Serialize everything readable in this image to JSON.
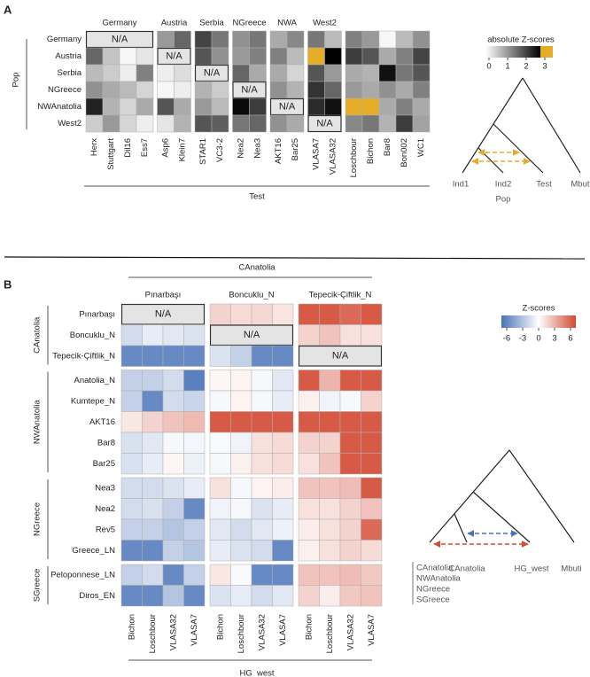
{
  "chart_data": [
    {
      "type": "heatmap",
      "panel": "A",
      "y_label": "Pop",
      "x_label": "Test",
      "na_label": "N/A",
      "rows": [
        "Germany",
        "Austria",
        "Serbia",
        "NGreece",
        "NWAnatolia",
        "West2"
      ],
      "row_groups": [
        {
          "size": 6
        }
      ],
      "columns": [
        "Herx",
        "Stuttgart",
        "Dil16",
        "Ess7",
        "Asp6",
        "Klein7",
        "STAR1",
        "VC3-2",
        "Nea2",
        "Nea3",
        "AKT16",
        "Bar25",
        "VLASA7",
        "VLASA32",
        "Loschbour",
        "Bichon",
        "Bar8",
        "Bon002",
        "WC1"
      ],
      "column_groups": [
        {
          "name": "Germany",
          "size": 4
        },
        {
          "name": "Austria",
          "size": 2
        },
        {
          "name": "Serbia",
          "size": 2
        },
        {
          "name": "NGreece",
          "size": 2
        },
        {
          "name": "NWA",
          "size": 2
        },
        {
          "name": "West2",
          "size": 2
        },
        {
          "size": 5
        }
      ],
      "values": [
        [
          null,
          null,
          null,
          null,
          1.2,
          1.8,
          2.2,
          1.6,
          1.3,
          1.6,
          1.0,
          1.4,
          1.6,
          0.8,
          1.5,
          1.2,
          0.1,
          0.8,
          1.3
        ],
        [
          1.8,
          0.7,
          0.1,
          0.3,
          null,
          null,
          2.0,
          1.3,
          1.2,
          1.5,
          1.5,
          0.8,
          3.5,
          3.0,
          2.3,
          2.0,
          1.0,
          1.5,
          2.2
        ],
        [
          0.8,
          0.6,
          0.2,
          1.5,
          0.2,
          0.4,
          null,
          null,
          1.8,
          1.0,
          1.0,
          0.5,
          2.0,
          1.2,
          1.0,
          0.9,
          2.8,
          1.6,
          2.0
        ],
        [
          1.3,
          1.0,
          0.8,
          0.5,
          0.1,
          0.2,
          0.9,
          0.6,
          null,
          null,
          1.3,
          0.9,
          2.4,
          1.8,
          1.2,
          1.0,
          1.3,
          1.0,
          1.5
        ],
        [
          2.6,
          0.9,
          0.5,
          1.0,
          2.0,
          1.0,
          1.2,
          0.8,
          2.9,
          2.3,
          null,
          null,
          2.5,
          2.8,
          3.5,
          3.5,
          1.0,
          1.5,
          1.0
        ],
        [
          0.6,
          1.2,
          0.5,
          0.2,
          0.3,
          0.9,
          2.0,
          1.9,
          1.6,
          1.8,
          1.3,
          1.0,
          null,
          null,
          1.4,
          1.6,
          0.9,
          2.3,
          1.1
        ]
      ],
      "scale": "sequential",
      "zlim": [
        0,
        3
      ],
      "colors": {
        "low": "#ffffff",
        "high": "#000000",
        "over": "#e5ac27"
      },
      "legend_title": "absolute Z-scores",
      "legend_ticks": [
        0,
        1,
        2,
        3
      ],
      "tree": {
        "leaves": [
          "Ind1",
          "Ind2",
          "Test",
          "Mbuti"
        ],
        "label": "Pop",
        "arrow_color": "#e5ac27"
      }
    },
    {
      "type": "heatmap",
      "panel": "B",
      "column_group_title": "CAnatolia",
      "x_label": "HG_west",
      "na_label": "N/A",
      "rows": [
        "Pınarbaşı",
        "Boncuklu_N",
        "Tepecik-Çiftlik_N",
        "Anatolia_N",
        "Kumtepe_N",
        "AKT16",
        "Bar8",
        "Bar25",
        "Nea3",
        "Nea2",
        "Rev5",
        "Greece_LN",
        "Peloponnese_LN",
        "Diros_EN"
      ],
      "row_groups": [
        {
          "name": "CAnatolia",
          "size": 3
        },
        {
          "name": "NWAnatolia",
          "size": 5
        },
        {
          "name": "NGreece",
          "size": 4
        },
        {
          "name": "SGreece",
          "size": 2
        }
      ],
      "columns": [
        "Bichon",
        "Loschbour",
        "VLASA32",
        "VLASA7",
        "Bichon",
        "Loschbour",
        "VLASA32",
        "VLASA7",
        "Bichon",
        "Loschbour",
        "VLASA32",
        "VLASA7"
      ],
      "column_groups": [
        {
          "name": "Pınarbaşı",
          "size": 4
        },
        {
          "name": "Boncuklu_N",
          "size": 4
        },
        {
          "name": "Tepecik-Çiftlik_N",
          "size": 4
        }
      ],
      "values": [
        [
          null,
          null,
          null,
          null,
          1.5,
          1.2,
          1.3,
          0.9,
          5.5,
          5.5,
          5,
          5.5
        ],
        [
          -1.5,
          -0.8,
          -1,
          -1.2,
          null,
          null,
          null,
          null,
          1.5,
          2,
          1,
          1
        ],
        [
          -5,
          -5,
          -5,
          -5,
          -1.2,
          -2,
          -5,
          -5,
          null,
          null,
          null,
          null
        ],
        [
          -2,
          -2,
          -1.5,
          -5.5,
          0.3,
          0.4,
          -0.3,
          -1,
          5.5,
          2.5,
          5.5,
          5.5
        ],
        [
          -2,
          -5,
          -1.5,
          -1.8,
          -0.3,
          0.4,
          -0.3,
          -0.8,
          0.5,
          -0.5,
          -0.3,
          1.5
        ],
        [
          0.8,
          1.5,
          2,
          2.3,
          5.5,
          5.5,
          5.5,
          5.5,
          5.5,
          5.5,
          5.5,
          5.5
        ],
        [
          -1.3,
          -1,
          -0.3,
          -0.4,
          -0.2,
          -0.5,
          1,
          1.2,
          1.5,
          1.5,
          5.5,
          5.5
        ],
        [
          -1.3,
          -0.8,
          0.3,
          -0.6,
          -0.3,
          0.5,
          1,
          1.2,
          1,
          2,
          5.5,
          5.5
        ],
        [
          -1.5,
          -1.5,
          -1.2,
          -0.8,
          1,
          -0.3,
          0.4,
          0.6,
          2,
          2,
          2.2,
          5.5
        ],
        [
          -1.5,
          -1.3,
          -2,
          -5,
          -0.5,
          -0.3,
          -1.2,
          -0.8,
          1,
          1,
          1.5,
          2
        ],
        [
          -2,
          -2,
          -2.5,
          -2,
          -1,
          -1.5,
          -1,
          -0.6,
          0.6,
          1,
          1.5,
          5
        ],
        [
          -5,
          -5,
          -2,
          -2.5,
          -0.8,
          -1.2,
          -1.5,
          -5,
          0.5,
          1,
          1.5,
          1.2
        ],
        [
          -2,
          -1.5,
          -5,
          -2,
          0.8,
          -0.2,
          -5,
          -5,
          2,
          2,
          2.2,
          1.8
        ],
        [
          -5,
          -5,
          -2.5,
          -5,
          -1.2,
          -0.8,
          -1.5,
          -1,
          1.5,
          0.6,
          1.8,
          2
        ]
      ],
      "scale": "diverging",
      "zlim": [
        -6,
        6
      ],
      "colors": {
        "low": "#4a73b8",
        "mid": "#ffffff",
        "high": "#d24b35"
      },
      "legend_title": "Z-scores",
      "legend_ticks": [
        -6,
        -3,
        0,
        3,
        6
      ],
      "tree": {
        "leaves": [
          "CAnatolia",
          "HG_west",
          "Mbuti"
        ],
        "populations": [
          "CAnatolia",
          "NWAnatolia",
          "NGreece",
          "SGreece"
        ],
        "arrow_colors": [
          "#4a73b8",
          "#d24b35"
        ]
      }
    }
  ]
}
